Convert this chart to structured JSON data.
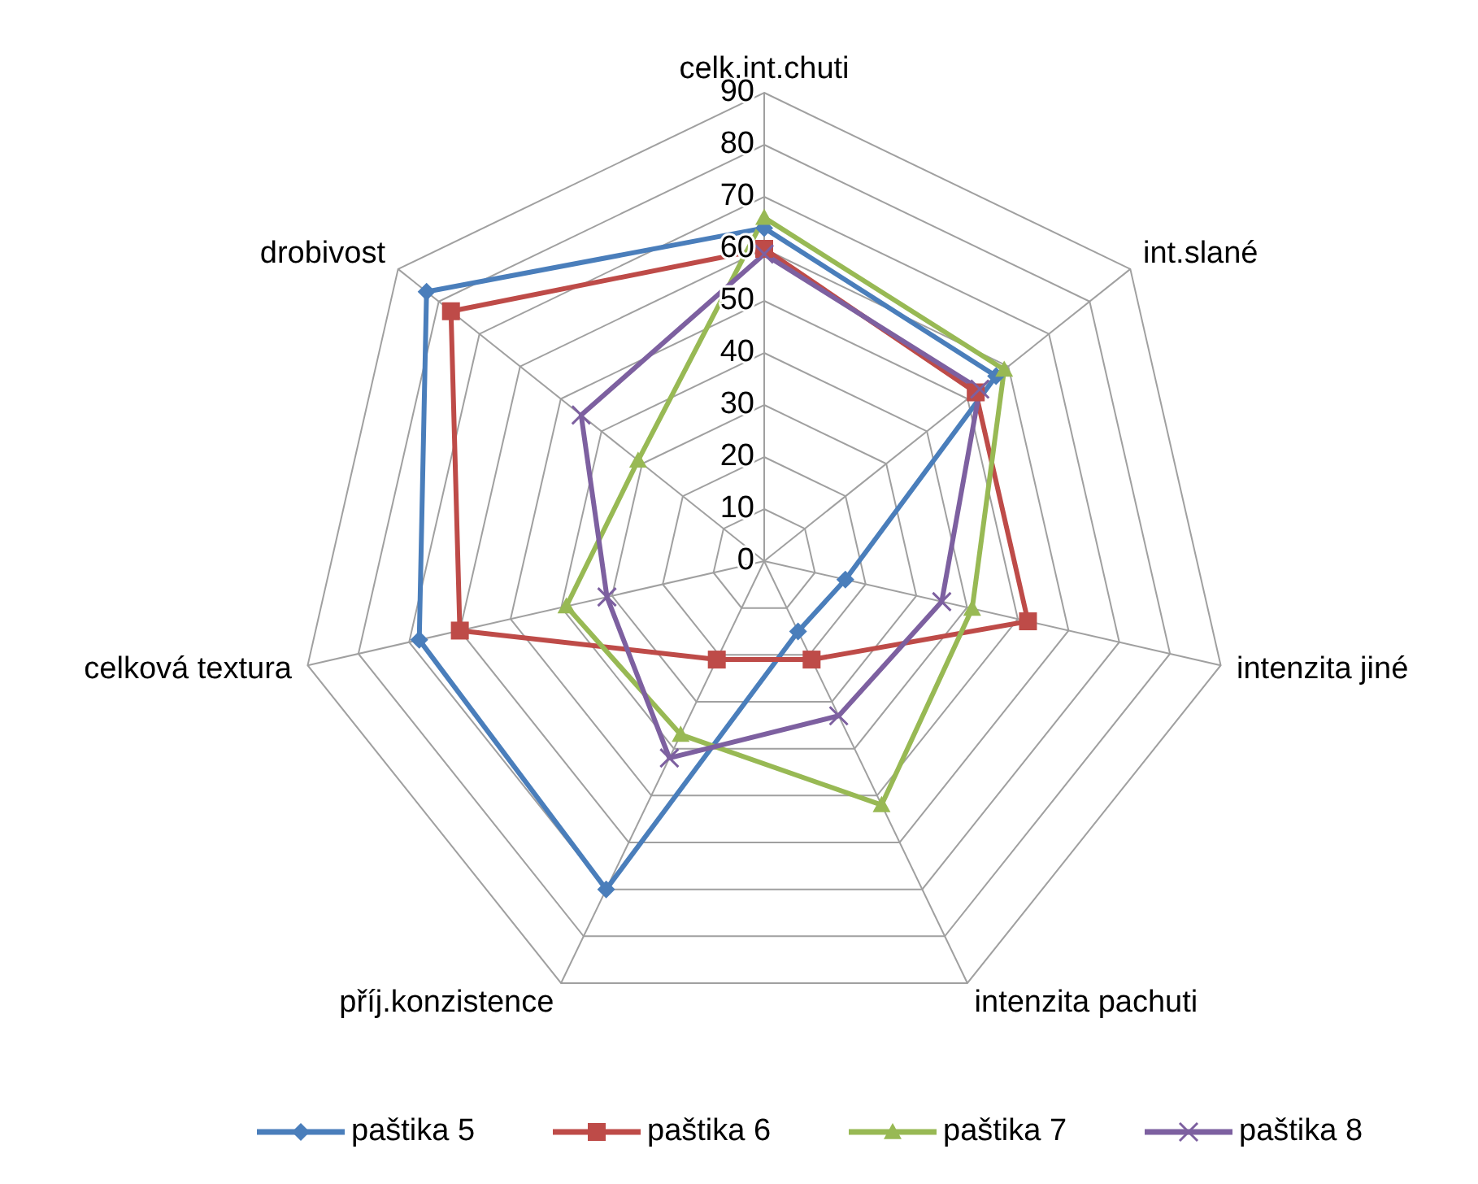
{
  "chart_data": {
    "type": "radar",
    "categories": [
      "celk.int.chuti",
      "int.slané",
      "intenzita jiné",
      "intenzita pachuti",
      "příj.konzistence",
      "celková textura",
      "drobivost"
    ],
    "series": [
      {
        "name": "paštika 5",
        "color": "#4a7ebb",
        "marker": "diamond",
        "values": [
          64,
          57,
          16,
          15,
          70,
          68,
          83
        ]
      },
      {
        "name": "paštika 6",
        "color": "#be4b48",
        "marker": "square",
        "values": [
          60,
          52,
          52,
          21,
          21,
          60,
          77
        ]
      },
      {
        "name": "paštika 7",
        "color": "#98b954",
        "marker": "triangle",
        "values": [
          66,
          59,
          41,
          52,
          37,
          39,
          31
        ]
      },
      {
        "name": "paštika 8",
        "color": "#7d60a0",
        "marker": "cross",
        "values": [
          59,
          53,
          35,
          33,
          42,
          31,
          45
        ]
      }
    ],
    "ylim": [
      0,
      90
    ],
    "yticks": [
      0,
      10,
      20,
      30,
      40,
      50,
      60,
      70,
      80,
      90
    ],
    "grid": true,
    "legend": "bottom"
  }
}
